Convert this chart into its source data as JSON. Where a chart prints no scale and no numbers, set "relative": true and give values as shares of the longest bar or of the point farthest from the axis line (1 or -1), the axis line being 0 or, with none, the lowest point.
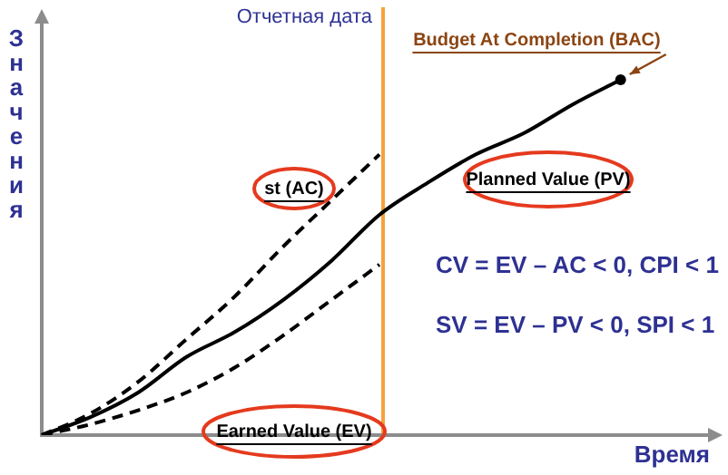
{
  "chart_data": {
    "type": "line",
    "relative": true,
    "xlabel": "Время",
    "ylabel": "Значения",
    "categories": [
      null,
      null,
      null,
      null,
      null,
      null,
      null,
      null,
      null,
      null,
      null,
      null,
      null,
      null,
      null
    ],
    "series": [
      {
        "name": "Planned Value (PV)",
        "color": "#000000",
        "line_style": "solid",
        "values": [
          0,
          0.05,
          0.12,
          0.22,
          0.29,
          0.38,
          0.49,
          0.62,
          0.71,
          0.79,
          0.85,
          0.93,
          1,
          null,
          null
        ]
      },
      {
        "name": "st (AC)",
        "color": "#000000",
        "line_style": "dashed",
        "values": [
          0,
          0.06,
          0.15,
          0.27,
          0.39,
          0.53,
          0.66,
          0.79,
          null,
          null,
          null,
          null,
          null,
          null,
          null
        ]
      },
      {
        "name": "Earned Value (EV)",
        "color": "#000000",
        "line_style": "dashed",
        "values": [
          0,
          0.03,
          0.07,
          0.12,
          0.19,
          0.28,
          0.38,
          0.48,
          null,
          null,
          null,
          null,
          null,
          null,
          null
        ]
      }
    ],
    "annotations": [
      "Отчетная дата",
      "Budget At Completion (BAC)",
      "CV = EV – AC < 0, CPI < 1",
      "SV = EV – PV < 0, SPI < 1"
    ],
    "legend": false,
    "marker": "none"
  }
}
